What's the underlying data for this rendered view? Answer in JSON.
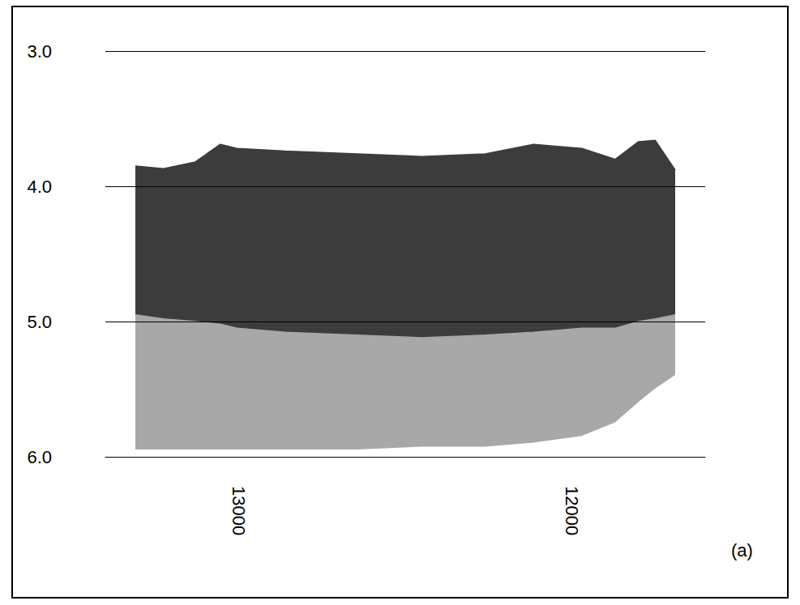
{
  "chart_data": {
    "type": "line",
    "x": [
      13310,
      13225,
      13130,
      13055,
      13005,
      12860,
      12645,
      12450,
      12260,
      12115,
      11970,
      11870,
      11800,
      11750,
      11690
    ],
    "series": [
      {
        "type": "area",
        "color": "#3c3c3c",
        "values": [
          3.85,
          3.87,
          3.82,
          3.69,
          3.72,
          3.74,
          3.76,
          3.78,
          3.76,
          3.69,
          3.72,
          3.8,
          3.67,
          3.66,
          3.88
        ]
      },
      {
        "type": "area",
        "color": "#a8a8a8",
        "values": [
          4.95,
          4.98,
          5.0,
          5.02,
          5.05,
          5.08,
          5.1,
          5.12,
          5.1,
          5.08,
          5.05,
          5.05,
          5.0,
          4.98,
          4.95
        ]
      },
      {
        "type": "area",
        "color": "#ffffff",
        "values": [
          5.95,
          5.95,
          5.95,
          5.95,
          5.95,
          5.95,
          5.95,
          5.93,
          5.93,
          5.9,
          5.85,
          5.75,
          5.6,
          5.5,
          5.4
        ]
      }
    ],
    "xlim": [
      13400,
      11600
    ],
    "xticks": [
      13000,
      12000
    ],
    "ylim": [
      6,
      3
    ],
    "yticks": [
      {
        "value": 3,
        "label": "3.0"
      },
      {
        "value": 4,
        "label": "4.0"
      },
      {
        "value": 5,
        "label": "5.0"
      },
      {
        "value": 6,
        "label": "6.0"
      }
    ],
    "grid": true,
    "annotations": [
      "(a)"
    ]
  }
}
